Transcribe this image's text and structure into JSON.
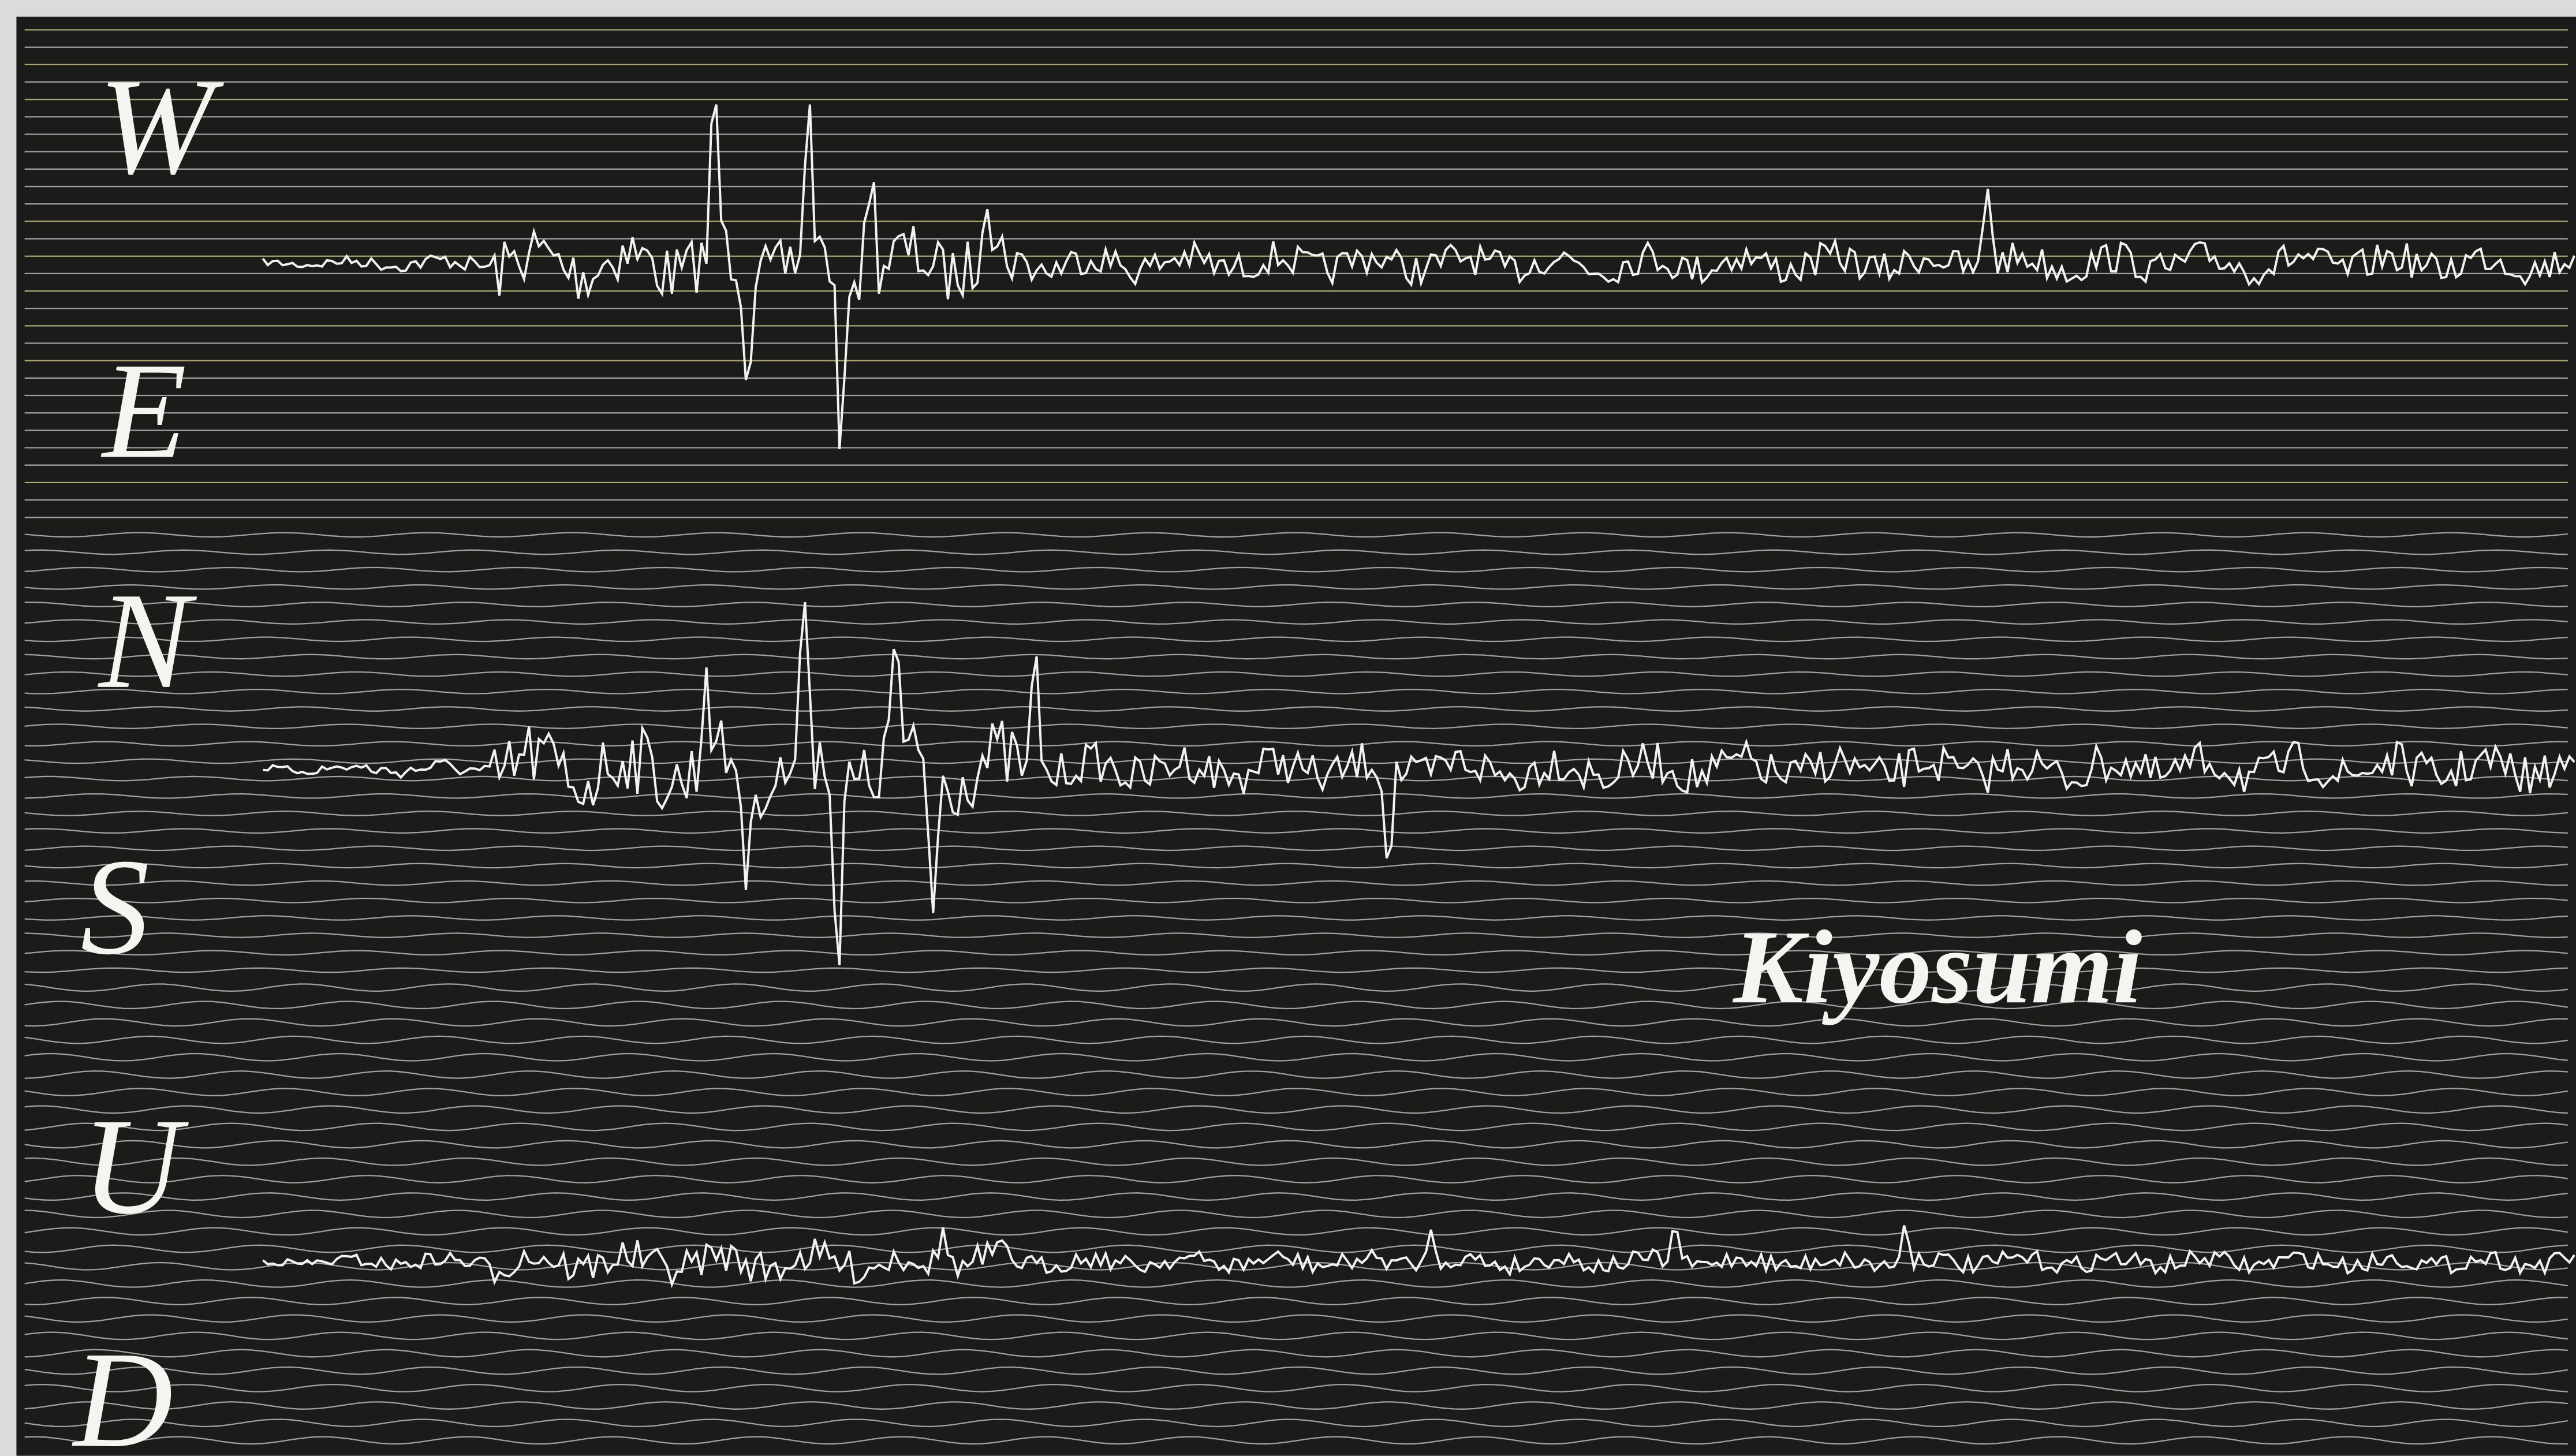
{
  "components": [
    "W",
    "E",
    "N",
    "S",
    "U",
    "D"
  ],
  "station": "Kiyosumi"
}
